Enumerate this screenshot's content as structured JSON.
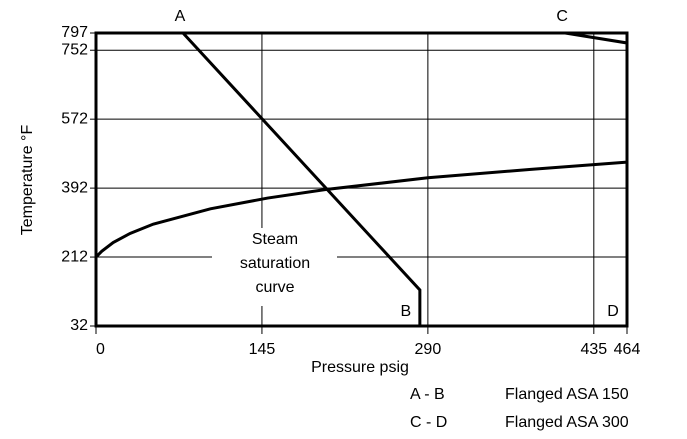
{
  "chart_data": {
    "type": "line",
    "xlabel": "Pressure psig",
    "ylabel": "Temperature °F",
    "xlim": [
      0,
      464
    ],
    "ylim": [
      32,
      797
    ],
    "xticks": [
      0,
      145,
      290,
      435,
      464
    ],
    "yticks": [
      32,
      212,
      392,
      572,
      752,
      797
    ],
    "grid": true,
    "series": [
      {
        "name": "A - B",
        "label": "Flanged ASA 150",
        "start_label": "A",
        "end_label": "B",
        "color": "#000000",
        "x": [
          76,
          283,
          283
        ],
        "values": [
          797,
          126,
          32
        ]
      },
      {
        "name": "C - D",
        "label": "Flanged ASA 300",
        "start_label": "C",
        "end_label": "D",
        "color": "#000000",
        "x": [
          410,
          464,
          464
        ],
        "values": [
          797,
          771,
          32
        ]
      },
      {
        "label_lines": [
          "Steam",
          "saturation",
          "curve"
        ],
        "color": "#000000",
        "x": [
          0,
          5,
          15,
          30,
          50,
          100,
          150,
          200,
          290,
          380,
          464
        ],
        "values": [
          212,
          227,
          250,
          274,
          298,
          338,
          366,
          388,
          419,
          441,
          460
        ]
      }
    ]
  }
}
